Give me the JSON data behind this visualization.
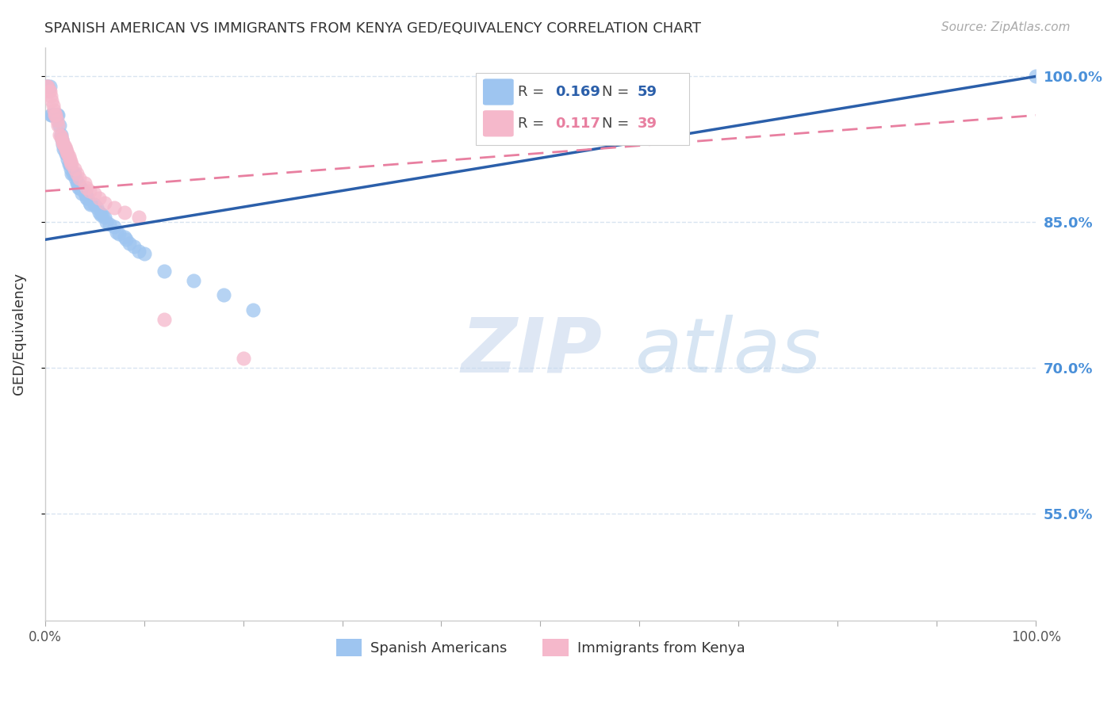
{
  "title": "SPANISH AMERICAN VS IMMIGRANTS FROM KENYA GED/EQUIVALENCY CORRELATION CHART",
  "source": "Source: ZipAtlas.com",
  "ylabel": "GED/Equivalency",
  "xlim": [
    0,
    1
  ],
  "ylim": [
    0.44,
    1.03
  ],
  "yticks": [
    0.55,
    0.7,
    0.85,
    1.0
  ],
  "ytick_labels": [
    "55.0%",
    "70.0%",
    "85.0%",
    "100.0%"
  ],
  "xticks": [
    0.0,
    0.1,
    0.2,
    0.3,
    0.4,
    0.5,
    0.6,
    0.7,
    0.8,
    0.9,
    1.0
  ],
  "xtick_labels": [
    "0.0%",
    "",
    "",
    "",
    "",
    "",
    "",
    "",
    "",
    "",
    "100.0%"
  ],
  "blue_color": "#9ec5f0",
  "pink_color": "#f5b8cb",
  "blue_line_color": "#2b5faa",
  "pink_line_color": "#e87fa0",
  "blue_line_y0": 0.832,
  "blue_line_y1": 1.0,
  "pink_line_y0": 0.882,
  "pink_line_y1": 0.96,
  "blue_x": [
    0.002,
    0.003,
    0.005,
    0.006,
    0.007,
    0.008,
    0.01,
    0.012,
    0.013,
    0.015,
    0.016,
    0.017,
    0.018,
    0.019,
    0.02,
    0.021,
    0.022,
    0.023,
    0.024,
    0.025,
    0.026,
    0.027,
    0.028,
    0.03,
    0.031,
    0.032,
    0.033,
    0.034,
    0.035,
    0.036,
    0.037,
    0.04,
    0.041,
    0.042,
    0.043,
    0.045,
    0.046,
    0.05,
    0.052,
    0.055,
    0.056,
    0.058,
    0.06,
    0.062,
    0.065,
    0.07,
    0.072,
    0.075,
    0.08,
    0.082,
    0.085,
    0.09,
    0.095,
    0.1,
    0.12,
    0.15,
    0.18,
    0.21,
    1.0
  ],
  "blue_y": [
    0.99,
    0.99,
    0.99,
    0.96,
    0.96,
    0.96,
    0.96,
    0.96,
    0.96,
    0.95,
    0.94,
    0.935,
    0.93,
    0.925,
    0.925,
    0.92,
    0.92,
    0.915,
    0.91,
    0.91,
    0.905,
    0.9,
    0.9,
    0.9,
    0.895,
    0.89,
    0.89,
    0.885,
    0.885,
    0.885,
    0.88,
    0.88,
    0.88,
    0.875,
    0.875,
    0.87,
    0.868,
    0.868,
    0.865,
    0.86,
    0.858,
    0.858,
    0.855,
    0.85,
    0.848,
    0.845,
    0.84,
    0.838,
    0.835,
    0.832,
    0.828,
    0.825,
    0.82,
    0.818,
    0.8,
    0.79,
    0.775,
    0.76,
    1.0
  ],
  "pink_x": [
    0.002,
    0.003,
    0.004,
    0.005,
    0.006,
    0.007,
    0.008,
    0.009,
    0.01,
    0.011,
    0.012,
    0.013,
    0.015,
    0.016,
    0.017,
    0.018,
    0.019,
    0.02,
    0.021,
    0.022,
    0.023,
    0.024,
    0.025,
    0.026,
    0.027,
    0.03,
    0.032,
    0.035,
    0.04,
    0.042,
    0.045,
    0.05,
    0.055,
    0.06,
    0.07,
    0.08,
    0.095,
    0.12,
    0.2
  ],
  "pink_y": [
    0.99,
    0.99,
    0.985,
    0.985,
    0.98,
    0.975,
    0.97,
    0.965,
    0.96,
    0.96,
    0.955,
    0.95,
    0.94,
    0.938,
    0.935,
    0.932,
    0.93,
    0.928,
    0.925,
    0.923,
    0.92,
    0.918,
    0.915,
    0.912,
    0.91,
    0.905,
    0.9,
    0.895,
    0.89,
    0.885,
    0.882,
    0.88,
    0.875,
    0.87,
    0.865,
    0.86,
    0.855,
    0.75,
    0.71
  ],
  "watermark_zip": "ZIP",
  "watermark_atlas": "atlas",
  "background_color": "#ffffff",
  "grid_color": "#d8e4f0",
  "right_ytick_color": "#4a90d9"
}
